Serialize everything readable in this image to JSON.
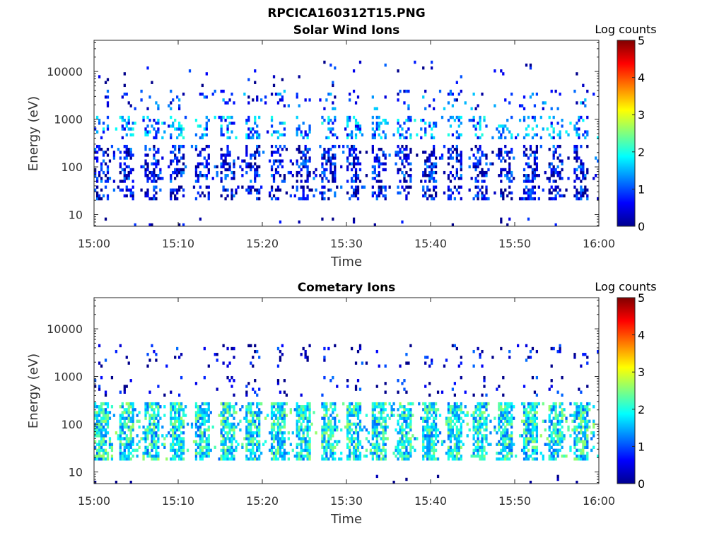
{
  "figure": {
    "title": "RPCICA160312T15.PNG"
  },
  "chart_data": [
    {
      "type": "heatmap",
      "title": "Solar Wind Ions",
      "xlabel": "Time",
      "ylabel": "Energy (eV)",
      "xlim": [
        "15:00",
        "16:00"
      ],
      "xticks": [
        "15:00",
        "15:10",
        "15:20",
        "15:30",
        "15:40",
        "15:50",
        "16:00"
      ],
      "ylim": [
        5.7,
        45000
      ],
      "yscale": "log",
      "yticks": [
        10,
        100,
        1000,
        10000
      ],
      "ytick_labels": [
        "10",
        "100",
        "1000",
        "10000"
      ],
      "colorbar": {
        "label": "Log counts",
        "range": [
          0,
          5
        ],
        "ticks": [
          "0",
          "1",
          "2",
          "3",
          "4",
          "5"
        ],
        "colormap": "jet"
      },
      "pattern": {
        "sweep_period_min": 3,
        "bands": [
          {
            "energy_range_eV": [
              6,
              9
            ],
            "log_counts": 0.1,
            "density": 0.05
          },
          {
            "energy_range_eV": [
              20,
              40
            ],
            "log_counts": 0.4,
            "density": 0.45
          },
          {
            "energy_range_eV": [
              50,
              300
            ],
            "log_counts": 0.5,
            "density": 0.45
          },
          {
            "energy_range_eV": [
              400,
              1200
            ],
            "log_counts": 1.2,
            "density": 0.3
          },
          {
            "energy_range_eV": [
              1500,
              4000
            ],
            "log_counts": 0.8,
            "density": 0.12
          },
          {
            "energy_range_eV": [
              4500,
              16000
            ],
            "log_counts": 0.3,
            "density": 0.03
          }
        ]
      }
    },
    {
      "type": "heatmap",
      "title": "Cometary Ions",
      "xlabel": "Time",
      "ylabel": "Energy (eV)",
      "xlim": [
        "15:00",
        "16:00"
      ],
      "xticks": [
        "15:00",
        "15:10",
        "15:20",
        "15:30",
        "15:40",
        "15:50",
        "16:00"
      ],
      "ylim": [
        5.7,
        45000
      ],
      "yscale": "log",
      "yticks": [
        10,
        100,
        1000,
        10000
      ],
      "ytick_labels": [
        "10",
        "100",
        "1000",
        "10000"
      ],
      "colorbar": {
        "label": "Log counts",
        "range": [
          0,
          5
        ],
        "ticks": [
          "0",
          "1",
          "2",
          "3",
          "4",
          "5"
        ],
        "colormap": "jet"
      },
      "pattern": {
        "sweep_period_min": 3,
        "bands": [
          {
            "energy_range_eV": [
              6,
              9
            ],
            "log_counts": 0.1,
            "density": 0.03
          },
          {
            "energy_range_eV": [
              18,
              300
            ],
            "log_counts": 1.8,
            "density": 0.75
          },
          {
            "energy_range_eV": [
              400,
              1000
            ],
            "log_counts": 0.3,
            "density": 0.08
          },
          {
            "energy_range_eV": [
              1500,
              4500
            ],
            "log_counts": 0.3,
            "density": 0.1
          }
        ]
      }
    }
  ]
}
